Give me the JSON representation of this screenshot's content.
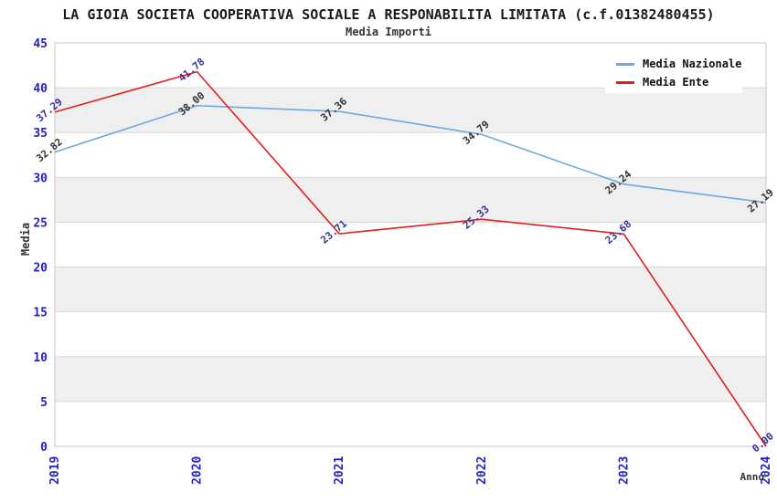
{
  "header": {
    "title": "LA GIOIA SOCIETA COOPERATIVA SOCIALE A RESPONABILITA LIMITATA (c.f.01382480455)",
    "subtitle": "Media Importi"
  },
  "chart_data": {
    "type": "line",
    "x": [
      "2019",
      "2020",
      "2021",
      "2022",
      "2023",
      "2024"
    ],
    "series": [
      {
        "name": "Media Nazionale",
        "color": "#6fa8dc",
        "label_color": "#333333",
        "values": [
          32.82,
          38.0,
          37.36,
          34.79,
          29.24,
          27.19
        ]
      },
      {
        "name": "Media Ente",
        "color": "#e02020",
        "label_color": "#333399",
        "values": [
          37.29,
          41.78,
          23.71,
          25.33,
          23.68,
          0.0
        ]
      }
    ],
    "xlabel": "Anno",
    "ylabel": "Media",
    "ylim": [
      0,
      45
    ],
    "ytick_step": 5,
    "grid": true,
    "legend_position": "top-right",
    "axis_tick_color": "#2222cc",
    "band_colors": [
      "#ffffff",
      "#efefef"
    ],
    "gridline_color": "#d9d9d9",
    "plot_border_color": "#c8c8c8"
  }
}
